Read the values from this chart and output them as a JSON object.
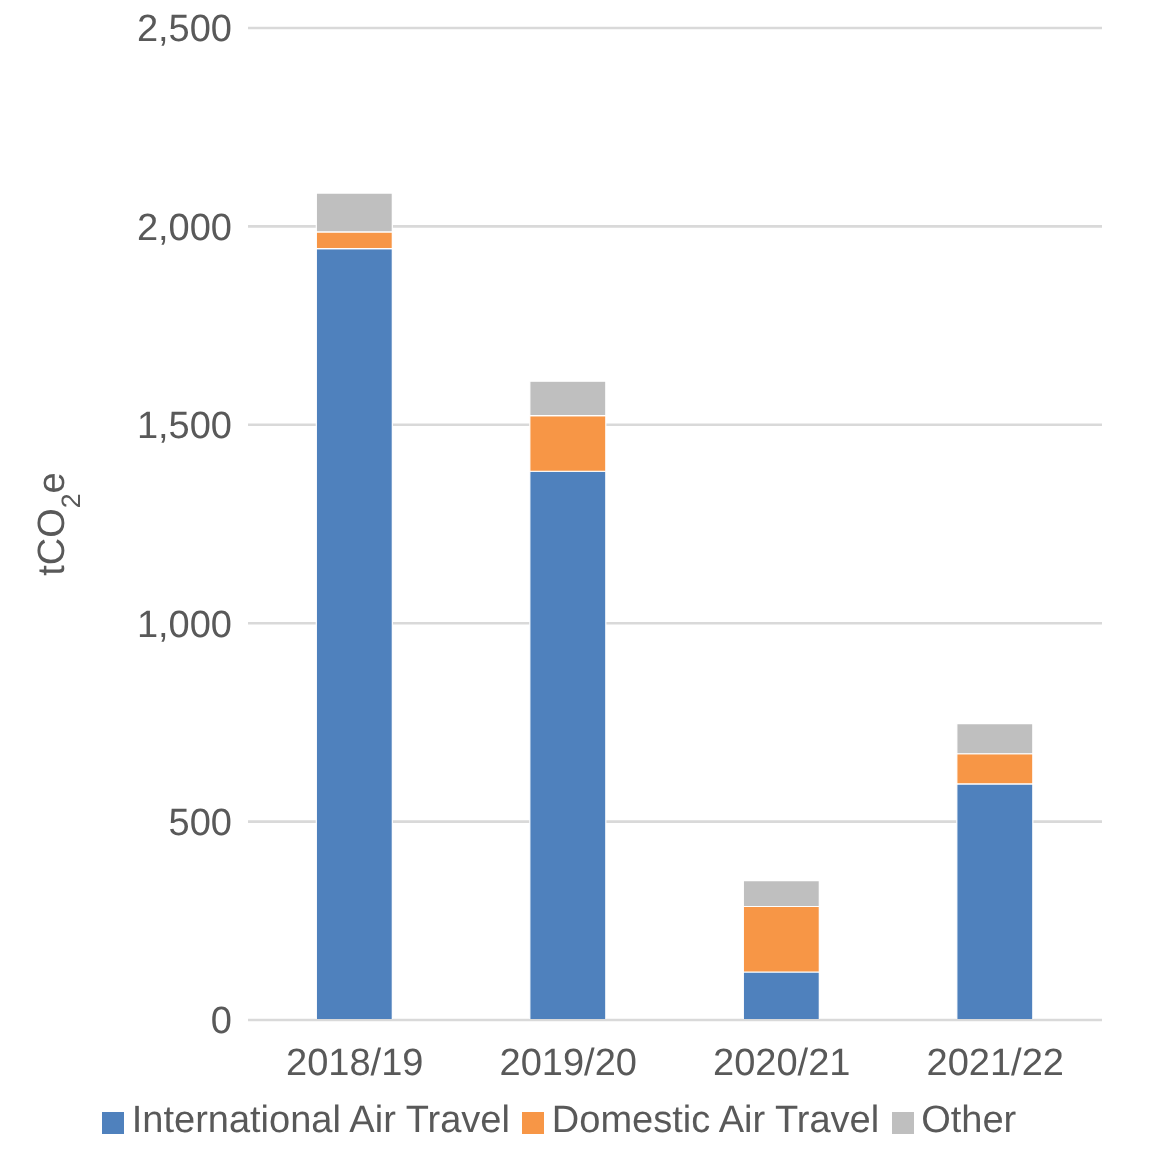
{
  "chart_data": {
    "type": "bar",
    "stacked": true,
    "ylabel": "tCO$_{2}$e",
    "categories": [
      "2018/19",
      "2019/20",
      "2020/21",
      "2021/22"
    ],
    "series": [
      {
        "name": "International Air Travel",
        "color": "#4f81bd",
        "values": [
          1944,
          1383,
          121,
          595
        ]
      },
      {
        "name": "Domestic Air Travel",
        "color": "#f79646",
        "values": [
          42,
          140,
          165,
          76
        ]
      },
      {
        "name": "Other",
        "color": "#bfbfbf",
        "values": [
          98,
          87,
          65,
          76
        ]
      }
    ],
    "ylim": [
      0,
      2500
    ],
    "yticks": [
      {
        "value": 0,
        "label": "0"
      },
      {
        "value": 500,
        "label": "500"
      },
      {
        "value": 1000,
        "label": "1,000"
      },
      {
        "value": 1500,
        "label": "1,500"
      },
      {
        "value": 2000,
        "label": "2,000"
      },
      {
        "value": 2500,
        "label": "2,500"
      }
    ],
    "grid": "y",
    "legend": "bottom"
  }
}
